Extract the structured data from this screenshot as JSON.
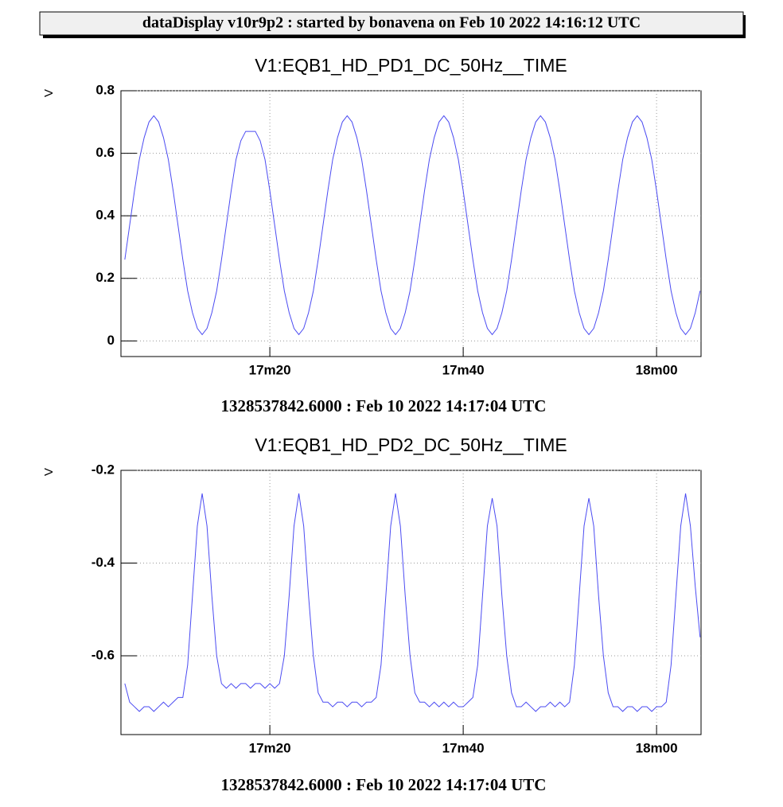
{
  "header": {
    "title": "dataDisplay v10r9p2 : started by bonavena on Feb 10 2022 14:16:12 UTC"
  },
  "chart_data": [
    {
      "type": "line",
      "title": "V1:EQB1_HD_PD1_DC_50Hz__TIME",
      "ylabel": "V",
      "xlabel": "1328537842.6000 : Feb 10 2022 14:17:04 UTC",
      "color": "#4b4bf2",
      "grid": true,
      "xlim": [
        1024.6,
        1084.6
      ],
      "xticks": [
        {
          "value": 1040,
          "label": "17m20"
        },
        {
          "value": 1060,
          "label": "17m40"
        },
        {
          "value": 1080,
          "label": "18m00"
        }
      ],
      "ylim": [
        -0.05,
        0.8
      ],
      "yticks": [
        0,
        0.2,
        0.4,
        0.6,
        0.8
      ],
      "x": [
        1025,
        1025.5,
        1026,
        1026.5,
        1027,
        1027.5,
        1028,
        1028.5,
        1029,
        1029.5,
        1030,
        1030.5,
        1031,
        1031.5,
        1032,
        1032.5,
        1033,
        1033.5,
        1034,
        1034.5,
        1035,
        1035.5,
        1036,
        1036.5,
        1037,
        1037.5,
        1038,
        1038.5,
        1039,
        1039.5,
        1040,
        1040.5,
        1041,
        1041.5,
        1042,
        1042.5,
        1043,
        1043.5,
        1044,
        1044.5,
        1045,
        1045.5,
        1046,
        1046.5,
        1047,
        1047.5,
        1048,
        1048.5,
        1049,
        1049.5,
        1050,
        1050.5,
        1051,
        1051.5,
        1052,
        1052.5,
        1053,
        1053.5,
        1054,
        1054.5,
        1055,
        1055.5,
        1056,
        1056.5,
        1057,
        1057.5,
        1058,
        1058.5,
        1059,
        1059.5,
        1060,
        1060.5,
        1061,
        1061.5,
        1062,
        1062.5,
        1063,
        1063.5,
        1064,
        1064.5,
        1065,
        1065.5,
        1066,
        1066.5,
        1067,
        1067.5,
        1068,
        1068.5,
        1069,
        1069.5,
        1070,
        1070.5,
        1071,
        1071.5,
        1072,
        1072.5,
        1073,
        1073.5,
        1074,
        1074.5,
        1075,
        1075.5,
        1076,
        1076.5,
        1077,
        1077.5,
        1078,
        1078.5,
        1079,
        1079.5,
        1080,
        1080.5,
        1081,
        1081.5,
        1082,
        1082.5,
        1083,
        1083.5,
        1084,
        1084.5
      ],
      "values": [
        0.26,
        0.37,
        0.48,
        0.58,
        0.65,
        0.7,
        0.72,
        0.7,
        0.65,
        0.58,
        0.48,
        0.37,
        0.26,
        0.16,
        0.09,
        0.04,
        0.02,
        0.04,
        0.09,
        0.16,
        0.26,
        0.37,
        0.48,
        0.58,
        0.64,
        0.67,
        0.67,
        0.67,
        0.64,
        0.58,
        0.48,
        0.37,
        0.26,
        0.16,
        0.09,
        0.04,
        0.02,
        0.04,
        0.09,
        0.16,
        0.26,
        0.37,
        0.48,
        0.58,
        0.65,
        0.7,
        0.72,
        0.7,
        0.65,
        0.58,
        0.48,
        0.37,
        0.26,
        0.16,
        0.09,
        0.04,
        0.02,
        0.04,
        0.09,
        0.16,
        0.26,
        0.37,
        0.48,
        0.58,
        0.65,
        0.7,
        0.72,
        0.7,
        0.65,
        0.58,
        0.48,
        0.37,
        0.26,
        0.16,
        0.09,
        0.04,
        0.02,
        0.04,
        0.09,
        0.16,
        0.26,
        0.37,
        0.48,
        0.58,
        0.65,
        0.7,
        0.72,
        0.7,
        0.65,
        0.58,
        0.48,
        0.37,
        0.26,
        0.16,
        0.09,
        0.04,
        0.02,
        0.04,
        0.09,
        0.16,
        0.26,
        0.37,
        0.48,
        0.58,
        0.65,
        0.7,
        0.72,
        0.7,
        0.65,
        0.58,
        0.48,
        0.37,
        0.26,
        0.16,
        0.09,
        0.04,
        0.02,
        0.04,
        0.09,
        0.16
      ]
    },
    {
      "type": "line",
      "title": "V1:EQB1_HD_PD2_DC_50Hz__TIME",
      "ylabel": "V",
      "xlabel": "1328537842.6000 : Feb 10 2022 14:17:04 UTC",
      "color": "#4b4bf2",
      "grid": true,
      "xlim": [
        1024.6,
        1084.6
      ],
      "xticks": [
        {
          "value": 1040,
          "label": "17m20"
        },
        {
          "value": 1060,
          "label": "17m40"
        },
        {
          "value": 1080,
          "label": "18m00"
        }
      ],
      "ylim": [
        -0.77,
        -0.2
      ],
      "yticks": [
        -0.2,
        -0.4,
        -0.6
      ],
      "x": [
        1025,
        1025.5,
        1026,
        1026.5,
        1027,
        1027.5,
        1028,
        1028.5,
        1029,
        1029.5,
        1030,
        1030.5,
        1031,
        1031.5,
        1032,
        1032.5,
        1033,
        1033.5,
        1034,
        1034.5,
        1035,
        1035.5,
        1036,
        1036.5,
        1037,
        1037.5,
        1038,
        1038.5,
        1039,
        1039.5,
        1040,
        1040.5,
        1041,
        1041.5,
        1042,
        1042.5,
        1043,
        1043.5,
        1044,
        1044.5,
        1045,
        1045.5,
        1046,
        1046.5,
        1047,
        1047.5,
        1048,
        1048.5,
        1049,
        1049.5,
        1050,
        1050.5,
        1051,
        1051.5,
        1052,
        1052.5,
        1053,
        1053.5,
        1054,
        1054.5,
        1055,
        1055.5,
        1056,
        1056.5,
        1057,
        1057.5,
        1058,
        1058.5,
        1059,
        1059.5,
        1060,
        1060.5,
        1061,
        1061.5,
        1062,
        1062.5,
        1063,
        1063.5,
        1064,
        1064.5,
        1065,
        1065.5,
        1066,
        1066.5,
        1067,
        1067.5,
        1068,
        1068.5,
        1069,
        1069.5,
        1070,
        1070.5,
        1071,
        1071.5,
        1072,
        1072.5,
        1073,
        1073.5,
        1074,
        1074.5,
        1075,
        1075.5,
        1076,
        1076.5,
        1077,
        1077.5,
        1078,
        1078.5,
        1079,
        1079.5,
        1080,
        1080.5,
        1081,
        1081.5,
        1082,
        1082.5,
        1083,
        1083.5,
        1084,
        1084.5
      ],
      "values": [
        -0.66,
        -0.7,
        -0.71,
        -0.72,
        -0.71,
        -0.71,
        -0.72,
        -0.71,
        -0.7,
        -0.71,
        -0.7,
        -0.69,
        -0.69,
        -0.62,
        -0.47,
        -0.32,
        -0.25,
        -0.32,
        -0.47,
        -0.6,
        -0.66,
        -0.67,
        -0.66,
        -0.67,
        -0.66,
        -0.66,
        -0.67,
        -0.66,
        -0.66,
        -0.67,
        -0.66,
        -0.67,
        -0.66,
        -0.6,
        -0.47,
        -0.32,
        -0.25,
        -0.32,
        -0.47,
        -0.6,
        -0.68,
        -0.7,
        -0.7,
        -0.71,
        -0.7,
        -0.7,
        -0.71,
        -0.7,
        -0.7,
        -0.71,
        -0.7,
        -0.7,
        -0.69,
        -0.62,
        -0.47,
        -0.32,
        -0.25,
        -0.32,
        -0.47,
        -0.6,
        -0.68,
        -0.7,
        -0.7,
        -0.71,
        -0.7,
        -0.71,
        -0.7,
        -0.71,
        -0.7,
        -0.71,
        -0.71,
        -0.7,
        -0.69,
        -0.62,
        -0.47,
        -0.32,
        -0.26,
        -0.32,
        -0.47,
        -0.6,
        -0.68,
        -0.71,
        -0.71,
        -0.7,
        -0.71,
        -0.72,
        -0.71,
        -0.71,
        -0.7,
        -0.71,
        -0.7,
        -0.71,
        -0.7,
        -0.62,
        -0.47,
        -0.32,
        -0.26,
        -0.32,
        -0.47,
        -0.6,
        -0.68,
        -0.71,
        -0.71,
        -0.72,
        -0.71,
        -0.71,
        -0.72,
        -0.71,
        -0.71,
        -0.72,
        -0.71,
        -0.71,
        -0.7,
        -0.62,
        -0.47,
        -0.32,
        -0.25,
        -0.32,
        -0.45,
        -0.56
      ]
    }
  ]
}
